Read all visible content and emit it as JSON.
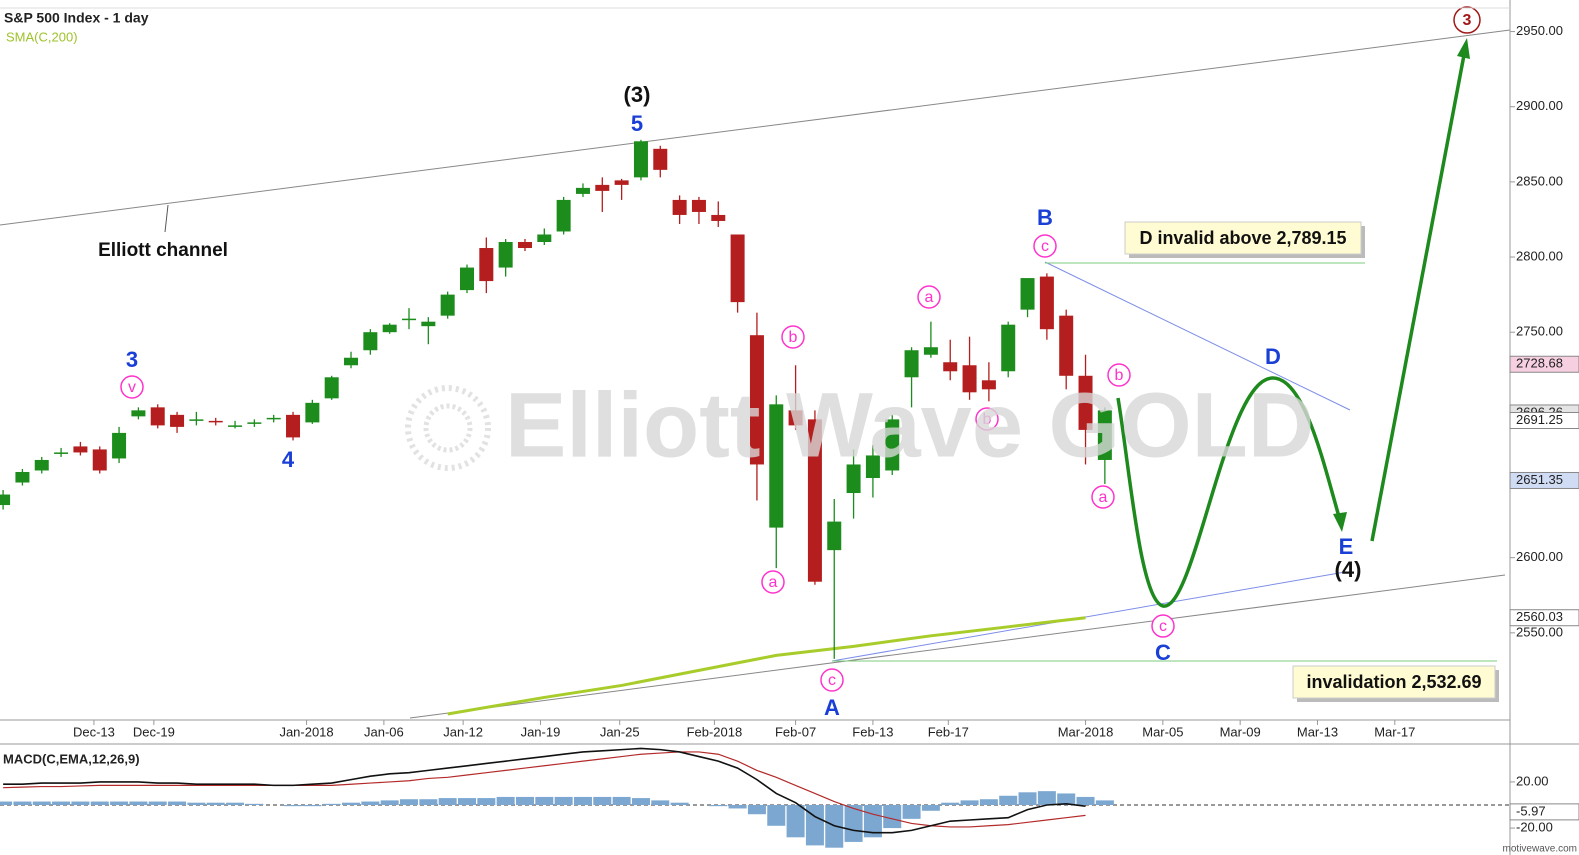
{
  "chart_data": {
    "type": "candlestick",
    "title": "S&P 500 Index - 1 day",
    "sma_label": "SMA(C,200)",
    "up_color": "#1c8c1c",
    "down_color": "#b41e1e",
    "sma_color": "#a8cc2a",
    "xlim": [
      -0.16,
      77.96
    ],
    "xticks": [
      {
        "value": 4.7,
        "label": "Dec-13"
      },
      {
        "value": 7.8,
        "label": "Dec-19"
      },
      {
        "value": 15.7,
        "label": "Jan-2018"
      },
      {
        "value": 19.7,
        "label": "Jan-06"
      },
      {
        "value": 23.8,
        "label": "Jan-12"
      },
      {
        "value": 27.8,
        "label": "Jan-19"
      },
      {
        "value": 31.9,
        "label": "Jan-25"
      },
      {
        "value": 36.8,
        "label": "Feb-2018"
      },
      {
        "value": 41,
        "label": "Feb-07"
      },
      {
        "value": 45,
        "label": "Feb-13"
      },
      {
        "value": 48.9,
        "label": "Feb-17"
      },
      {
        "value": 56,
        "label": "Mar-2018"
      },
      {
        "value": 60,
        "label": "Mar-05"
      },
      {
        "value": 64,
        "label": "Mar-09"
      },
      {
        "value": 68,
        "label": "Mar-13"
      },
      {
        "value": 72,
        "label": "Mar-17"
      }
    ],
    "ylim": [
      2492,
      2971
    ],
    "yticks": [
      {
        "value": 2550,
        "label": "2550.00"
      },
      {
        "value": 2600,
        "label": "2600.00"
      },
      {
        "value": 2750,
        "label": "2750.00"
      },
      {
        "value": 2800,
        "label": "2800.00"
      },
      {
        "value": 2850,
        "label": "2850.00"
      },
      {
        "value": 2900,
        "label": "2900.00"
      },
      {
        "value": 2950,
        "label": "2950.00"
      }
    ],
    "price_markers": [
      {
        "value": 2728.68,
        "label": "2728.68",
        "color": "#f6cfe0"
      },
      {
        "value": 2696.26,
        "label": "2696.26",
        "color": "#e4e4e4"
      },
      {
        "value": 2691.25,
        "label": "2691.25",
        "color": "#ffffff"
      },
      {
        "value": 2651.35,
        "label": "2651.35",
        "color": "#cfdcf4"
      },
      {
        "value": 2560.03,
        "label": "2560.03",
        "color": "#ffffff"
      }
    ],
    "x": [
      0,
      1,
      2,
      3,
      4,
      5,
      6,
      7,
      8,
      9,
      10,
      11,
      12,
      13,
      14,
      15,
      16,
      17,
      18,
      19,
      20,
      21,
      22,
      23,
      24,
      25,
      26,
      27,
      28,
      29,
      30,
      31,
      32,
      33,
      34,
      35,
      36,
      37,
      38,
      39,
      40,
      41,
      42,
      43,
      44,
      45,
      46,
      47,
      48,
      49,
      50,
      51,
      52,
      53,
      54,
      55,
      56,
      57
    ],
    "open": [
      2635,
      2650,
      2658,
      2669,
      2674,
      2672,
      2666,
      2694,
      2700,
      2695,
      2691,
      2691,
      2687,
      2689,
      2692,
      2695,
      2690,
      2706,
      2728,
      2738,
      2750,
      2758,
      2754,
      2761,
      2778,
      2806,
      2793,
      2810,
      2810,
      2817,
      2842,
      2848,
      2851,
      2853,
      2872,
      2838,
      2838,
      2828,
      2815,
      2748,
      2620,
      2698,
      2692,
      2605,
      2643,
      2653,
      2658,
      2720,
      2735,
      2730,
      2728,
      2718,
      2724,
      2765,
      2787,
      2761,
      2721,
      2665
    ],
    "high": [
      2645,
      2659,
      2667,
      2673,
      2677,
      2674,
      2687,
      2700,
      2702,
      2697,
      2697,
      2693,
      2691,
      2692,
      2695,
      2697,
      2705,
      2721,
      2737,
      2752,
      2756,
      2766,
      2760,
      2777,
      2795,
      2813,
      2812,
      2812,
      2819,
      2840,
      2849,
      2853,
      2852,
      2878,
      2874,
      2841,
      2840,
      2837,
      2815,
      2763,
      2708,
      2728,
      2698,
      2639,
      2672,
      2675,
      2695,
      2740,
      2757,
      2745,
      2747,
      2730,
      2757,
      2784,
      2789.15,
      2765,
      2735,
      2700
    ],
    "low": [
      2632,
      2648,
      2656,
      2667,
      2668,
      2656,
      2663,
      2692,
      2686,
      2683,
      2688,
      2688,
      2686,
      2687,
      2690,
      2678,
      2689,
      2705,
      2726,
      2735,
      2749,
      2752,
      2742,
      2759,
      2776,
      2776,
      2787,
      2804,
      2808,
      2815,
      2840,
      2830,
      2838,
      2851,
      2853,
      2822,
      2822,
      2820,
      2763,
      2638,
      2593,
      2685,
      2582,
      2532.69,
      2626,
      2640,
      2655,
      2700,
      2733,
      2718,
      2705,
      2704,
      2720,
      2760,
      2745,
      2712,
      2662,
      2649
    ],
    "close": [
      2642,
      2657,
      2665,
      2670,
      2670,
      2658,
      2683,
      2698,
      2688,
      2687,
      2692,
      2690,
      2688,
      2690,
      2693,
      2680,
      2703,
      2720,
      2733,
      2750,
      2755,
      2759,
      2757,
      2775,
      2793,
      2784,
      2810,
      2806,
      2815,
      2838,
      2846,
      2844,
      2848,
      2877,
      2858,
      2828,
      2830,
      2824,
      2770,
      2662,
      2702,
      2688,
      2584,
      2624,
      2662,
      2668,
      2692,
      2738,
      2740,
      2724,
      2710,
      2712,
      2755,
      2786,
      2752,
      2721,
      2685,
      2698
    ],
    "sma": {
      "x": [
        23,
        28,
        32,
        36,
        40,
        44,
        48,
        52,
        56
      ],
      "values": [
        2496,
        2507,
        2515,
        2525,
        2535,
        2541,
        2548,
        2554,
        2560
      ]
    },
    "annotations": [
      {
        "text": "(3)",
        "color": "#111111"
      },
      {
        "text": "5",
        "color": "#1a3fd6"
      },
      {
        "text": "3",
        "color": "#1a3fd6"
      },
      {
        "text": "v",
        "color": "#ff33cc",
        "circle": true
      },
      {
        "text": "4",
        "color": "#1a3fd6"
      },
      {
        "text": "Elliott channel",
        "color": "#111111"
      },
      {
        "text": "a",
        "color": "#ff33cc",
        "circle": true
      },
      {
        "text": "b",
        "color": "#ff33cc",
        "circle": true
      },
      {
        "text": "c",
        "color": "#ff33cc",
        "circle": true
      },
      {
        "text": "A",
        "color": "#1a3fd6"
      },
      {
        "text": "a",
        "color": "#ff33cc",
        "circle": true
      },
      {
        "text": "b",
        "color": "#ff33cc",
        "circle": true
      },
      {
        "text": "B",
        "color": "#1a3fd6"
      },
      {
        "text": "c",
        "color": "#ff33cc",
        "circle": true
      },
      {
        "text": "b",
        "color": "#ff33cc",
        "circle": true
      },
      {
        "text": "a",
        "color": "#ff33cc",
        "circle": true
      },
      {
        "text": "c",
        "color": "#ff33cc",
        "circle": true
      },
      {
        "text": "C",
        "color": "#1a3fd6"
      },
      {
        "text": "D",
        "color": "#1a3fd6"
      },
      {
        "text": "E",
        "color": "#1a3fd6"
      },
      {
        "text": "(4)",
        "color": "#111111"
      },
      {
        "text": "3",
        "color": "#a01818",
        "circle": true
      }
    ],
    "notes": [
      "D invalid above 2,789.15",
      "invalidation 2,532.69"
    ],
    "watermark": "Elliott Wave GOLD",
    "credit": "motivewave.com",
    "macd": {
      "label": "MACD(C,EMA,12,26,9)",
      "ylim": [
        -39,
        52
      ],
      "yticks": [
        {
          "value": 20,
          "label": "20.00"
        },
        {
          "value": -20,
          "label": "-20.00"
        }
      ],
      "marker": {
        "value": -5.97,
        "label": "-5.97"
      },
      "hist_color": "#7ba7d0",
      "line_color": "#111111",
      "signal_color": "#b42a2a",
      "histogram": [
        3,
        3,
        3,
        3,
        3,
        3,
        3,
        3,
        3,
        3,
        2,
        2,
        2,
        1,
        0,
        -1,
        -1,
        1,
        2,
        3,
        4,
        5,
        5,
        6,
        6,
        6,
        7,
        7,
        7,
        7,
        7,
        7,
        7,
        6,
        4,
        2,
        0,
        -1,
        -3,
        -8,
        -18,
        -28,
        -35,
        -37,
        -32,
        -28,
        -20,
        -12,
        -5,
        2,
        4,
        5,
        8,
        11,
        12,
        10,
        7,
        4
      ],
      "line": [
        18,
        18,
        19,
        19,
        19,
        20,
        20,
        20,
        19,
        19,
        18,
        18,
        18,
        18,
        17,
        17,
        18,
        19,
        22,
        25,
        27,
        28,
        30,
        32,
        34,
        36,
        38,
        40,
        42,
        44,
        46,
        47,
        48,
        49,
        48,
        46,
        42,
        38,
        32,
        22,
        10,
        2,
        -10,
        -18,
        -22,
        -24,
        -24,
        -22,
        -18,
        -14,
        -13,
        -12,
        -11,
        -4,
        0,
        1,
        -1,
        null
      ],
      "signal": [
        15,
        15.5,
        16,
        16,
        16.5,
        17,
        17,
        17,
        17,
        17,
        17,
        17,
        17,
        17,
        17,
        17,
        17,
        17,
        18,
        19,
        20,
        21,
        23,
        24,
        26,
        28,
        30,
        32,
        34,
        36,
        38,
        40,
        42,
        44,
        45,
        46,
        46,
        44,
        38,
        30,
        24,
        17,
        10,
        3,
        -3,
        -8,
        -12,
        -16,
        -18,
        -19,
        -19,
        -18,
        -17,
        -15,
        -13,
        -11,
        -9,
        null
      ]
    }
  }
}
